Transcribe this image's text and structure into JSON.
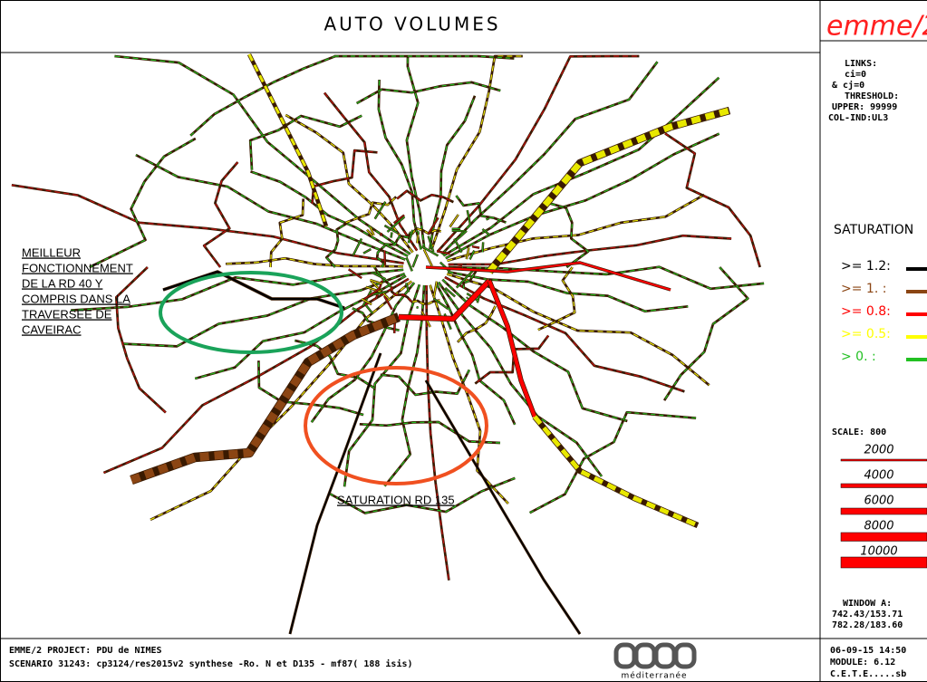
{
  "header": {
    "title": "AUTO VOLUMES",
    "logo": "emme/2"
  },
  "info": {
    "lines": [
      "LINKS:",
      "ci=0",
      "& cj=0",
      "THRESHOLD:",
      "UPPER: 99999",
      "COL-IND:UL3"
    ]
  },
  "legend": {
    "title": "SATURATION",
    "items": [
      {
        "label": ">= 1.2:",
        "color": "#000000"
      },
      {
        "label": ">= 1. :",
        "color": "#8b4513"
      },
      {
        "label": ">= 0.8:",
        "color": "#ff0000"
      },
      {
        "label": ">= 0.5:",
        "color": "#ffff00"
      },
      {
        "label": ">  0. :",
        "color": "#22c022"
      }
    ]
  },
  "scale": {
    "title": "SCALE:     800",
    "labels": [
      2000,
      4000,
      6000,
      8000,
      10000
    ]
  },
  "window": {
    "lines": [
      "WINDOW A:",
      "742.43/153.71",
      "782.28/183.60"
    ]
  },
  "annotations": {
    "west": [
      "MEILLEUR",
      "FONCTIONNEMENT",
      "DE LA RD 40 Y",
      "COMPRIS DANS LA",
      "TRAVERSEE DE",
      "CAVEIRAC"
    ],
    "south": "SATURATION RD 135"
  },
  "footer": {
    "project": "EMME/2 PROJECT: PDU de NIMES",
    "scenario": "SCENARIO 31243: cp3124/res2015v2 synthese -Ro. N et D135 - mf87( 188 isis)",
    "logo": "méditerranée",
    "right": [
      "06-09-15 14:50",
      "MODULE:   6.12",
      "C.E.T.E.....sb"
    ]
  }
}
